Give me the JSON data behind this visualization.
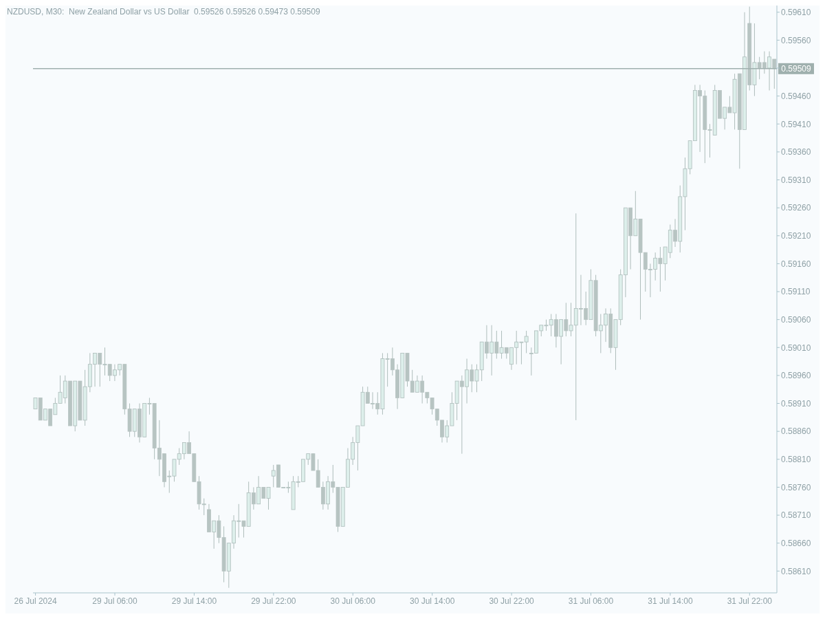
{
  "chart_data": {
    "type": "candlestick",
    "title": "NZDUSD, M30:  New Zealand Dollar vs US Dollar  0.59526 0.59526 0.59473 0.59509",
    "categories": [
      "26 Jul 2024",
      null,
      null,
      null,
      null,
      null,
      null,
      null,
      null,
      null,
      null,
      null,
      null,
      null,
      null,
      null,
      "29 Jul 06:00",
      null,
      null,
      null,
      null,
      null,
      null,
      null,
      null,
      null,
      null,
      null,
      null,
      null,
      null,
      null,
      "29 Jul 14:00",
      null,
      null,
      null,
      null,
      null,
      null,
      null,
      null,
      null,
      null,
      null,
      null,
      null,
      null,
      null,
      "29 Jul 22:00",
      null,
      null,
      null,
      null,
      null,
      null,
      null,
      null,
      null,
      null,
      null,
      null,
      null,
      null,
      null,
      "30 Jul 06:00",
      null,
      null,
      null,
      null,
      null,
      null,
      null,
      null,
      null,
      null,
      null,
      null,
      null,
      null,
      null,
      "30 Jul 14:00",
      null,
      null,
      null,
      null,
      null,
      null,
      null,
      null,
      null,
      null,
      null,
      null,
      null,
      null,
      null,
      "30 Jul 22:00",
      null,
      null,
      null,
      null,
      null,
      null,
      null,
      null,
      null,
      null,
      null,
      null,
      null,
      null,
      null,
      "31 Jul 06:00",
      null,
      null,
      null,
      null,
      null,
      null,
      null,
      null,
      null,
      null,
      null,
      null,
      null,
      null,
      null,
      "31 Jul 14:00",
      null,
      null,
      null,
      null,
      null,
      null,
      null,
      null,
      null,
      null,
      null,
      null,
      null,
      null,
      null,
      "31 Jul 22:00",
      null,
      null,
      null,
      null,
      null
    ],
    "ohlc": [
      [
        0.589,
        0.5892,
        0.589,
        0.5892
      ],
      [
        0.5892,
        0.5892,
        0.5888,
        0.5888
      ],
      [
        0.5888,
        0.589,
        0.5888,
        0.589
      ],
      [
        0.589,
        0.589,
        0.5887,
        0.5887
      ],
      [
        0.5889,
        0.5892,
        0.5889,
        0.5891
      ],
      [
        0.5891,
        0.5896,
        0.5891,
        0.5893
      ],
      [
        0.5892,
        0.5896,
        0.5891,
        0.5895
      ],
      [
        0.5895,
        0.5895,
        0.5887,
        0.5887
      ],
      [
        0.5887,
        0.5895,
        0.5886,
        0.5895
      ],
      [
        0.5895,
        0.5895,
        0.5888,
        0.5888
      ],
      [
        0.5888,
        0.5897,
        0.5887,
        0.5894
      ],
      [
        0.5894,
        0.59,
        0.5893,
        0.5898
      ],
      [
        0.5898,
        0.59,
        0.5894,
        0.59
      ],
      [
        0.59,
        0.59,
        0.5894,
        0.5898
      ],
      [
        0.5898,
        0.5901,
        0.5896,
        0.5898
      ],
      [
        0.5898,
        0.5898,
        0.5895,
        0.5896
      ],
      [
        0.5896,
        0.5898,
        0.5895,
        0.5897
      ],
      [
        0.5897,
        0.5898,
        0.5896,
        0.5898
      ],
      [
        0.5898,
        0.5898,
        0.5889,
        0.589
      ],
      [
        0.589,
        0.5891,
        0.5885,
        0.5886
      ],
      [
        0.5886,
        0.589,
        0.5885,
        0.589
      ],
      [
        0.589,
        0.5891,
        0.5884,
        0.5885
      ],
      [
        0.5885,
        0.5891,
        0.5885,
        0.5891
      ],
      [
        0.5891,
        0.5892,
        0.5889,
        0.5891
      ],
      [
        0.5891,
        0.5891,
        0.5881,
        0.5883
      ],
      [
        0.5883,
        0.5888,
        0.5878,
        0.5881
      ],
      [
        0.5882,
        0.5882,
        0.5876,
        0.5877
      ],
      [
        0.5878,
        0.5879,
        0.5875,
        0.5878
      ],
      [
        0.5878,
        0.5881,
        0.5877,
        0.5881
      ],
      [
        0.5881,
        0.5883,
        0.588,
        0.5882
      ],
      [
        0.5882,
        0.5884,
        0.5881,
        0.5884
      ],
      [
        0.5884,
        0.5886,
        0.5882,
        0.5882
      ],
      [
        0.5882,
        0.5882,
        0.5877,
        0.5877
      ],
      [
        0.5877,
        0.5878,
        0.5872,
        0.5873
      ],
      [
        0.5873,
        0.5874,
        0.5871,
        0.5873
      ],
      [
        0.5872,
        0.5873,
        0.5868,
        0.5868
      ],
      [
        0.5868,
        0.587,
        0.5865,
        0.587
      ],
      [
        0.587,
        0.5871,
        0.5866,
        0.5867
      ],
      [
        0.5867,
        0.5869,
        0.5859,
        0.5861
      ],
      [
        0.5861,
        0.5866,
        0.5858,
        0.5866
      ],
      [
        0.5866,
        0.5871,
        0.5865,
        0.587
      ],
      [
        0.587,
        0.5873,
        0.5867,
        0.587
      ],
      [
        0.587,
        0.587,
        0.5867,
        0.5869
      ],
      [
        0.5869,
        0.5877,
        0.5869,
        0.5875
      ],
      [
        0.5875,
        0.5876,
        0.5872,
        0.5873
      ],
      [
        0.5873,
        0.5878,
        0.5873,
        0.5876
      ],
      [
        0.5876,
        0.5876,
        0.5874,
        0.5874
      ],
      [
        0.5874,
        0.5876,
        0.5872,
        0.5876
      ],
      [
        0.5878,
        0.588,
        0.5876,
        0.5879
      ],
      [
        0.588,
        0.588,
        0.5876,
        0.5876
      ],
      [
        0.5876,
        0.5876,
        0.5876,
        0.5876
      ],
      [
        0.5876,
        0.5877,
        0.5875,
        0.5876
      ],
      [
        0.5872,
        0.5878,
        0.5872,
        0.5877
      ],
      [
        0.5877,
        0.5878,
        0.5876,
        0.5877
      ],
      [
        0.5877,
        0.5881,
        0.5877,
        0.5881
      ],
      [
        0.5881,
        0.5882,
        0.588,
        0.5882
      ],
      [
        0.5882,
        0.5882,
        0.5879,
        0.5879
      ],
      [
        0.5879,
        0.5881,
        0.5876,
        0.5876
      ],
      [
        0.5876,
        0.5877,
        0.5872,
        0.5873
      ],
      [
        0.5873,
        0.5878,
        0.5872,
        0.5877
      ],
      [
        0.5877,
        0.588,
        0.5875,
        0.5876
      ],
      [
        0.5876,
        0.5876,
        0.5868,
        0.5869
      ],
      [
        0.5869,
        0.5876,
        0.5869,
        0.5876
      ],
      [
        0.5876,
        0.5883,
        0.5876,
        0.5881
      ],
      [
        0.5881,
        0.5885,
        0.588,
        0.5884
      ],
      [
        0.5884,
        0.5887,
        0.5879,
        0.5887
      ],
      [
        0.5887,
        0.5894,
        0.5887,
        0.5893
      ],
      [
        0.5893,
        0.5894,
        0.5891,
        0.5891
      ],
      [
        0.5891,
        0.5893,
        0.589,
        0.5891
      ],
      [
        0.5891,
        0.5893,
        0.5889,
        0.589
      ],
      [
        0.589,
        0.59,
        0.5889,
        0.5899
      ],
      [
        0.5899,
        0.59,
        0.5894,
        0.5899
      ],
      [
        0.5899,
        0.5901,
        0.5896,
        0.5897
      ],
      [
        0.5897,
        0.5898,
        0.589,
        0.5892
      ],
      [
        0.5892,
        0.59,
        0.5892,
        0.59
      ],
      [
        0.59,
        0.59,
        0.5894,
        0.5895
      ],
      [
        0.5895,
        0.5897,
        0.5893,
        0.5893
      ],
      [
        0.5893,
        0.5896,
        0.5893,
        0.5895
      ],
      [
        0.5895,
        0.5896,
        0.5891,
        0.5893
      ],
      [
        0.5893,
        0.5893,
        0.5891,
        0.5892
      ],
      [
        0.5892,
        0.5892,
        0.5889,
        0.589
      ],
      [
        0.589,
        0.589,
        0.5887,
        0.5888
      ],
      [
        0.5888,
        0.5888,
        0.5884,
        0.5885
      ],
      [
        0.5885,
        0.5888,
        0.5884,
        0.5887
      ],
      [
        0.5887,
        0.5893,
        0.5887,
        0.5891
      ],
      [
        0.5891,
        0.5895,
        0.5888,
        0.5895
      ],
      [
        0.5895,
        0.5896,
        0.5882,
        0.5894
      ],
      [
        0.5894,
        0.5899,
        0.5891,
        0.5897
      ],
      [
        0.5897,
        0.5898,
        0.5893,
        0.5895
      ],
      [
        0.5895,
        0.5898,
        0.5893,
        0.5897
      ],
      [
        0.5897,
        0.5902,
        0.5895,
        0.5902
      ],
      [
        0.5902,
        0.5905,
        0.5899,
        0.59
      ],
      [
        0.59,
        0.5905,
        0.5896,
        0.5902
      ],
      [
        0.5902,
        0.5904,
        0.5899,
        0.59
      ],
      [
        0.59,
        0.5904,
        0.5899,
        0.5901
      ],
      [
        0.5901,
        0.5901,
        0.5899,
        0.59
      ],
      [
        0.5898,
        0.5901,
        0.5897,
        0.5901
      ],
      [
        0.5901,
        0.5904,
        0.5898,
        0.5902
      ],
      [
        0.5902,
        0.5902,
        0.5898,
        0.5902
      ],
      [
        0.5902,
        0.5904,
        0.59,
        0.5903
      ],
      [
        0.59,
        0.5901,
        0.5896,
        0.59
      ],
      [
        0.59,
        0.5904,
        0.59,
        0.5904
      ],
      [
        0.5904,
        0.5905,
        0.5903,
        0.5905
      ],
      [
        0.5905,
        0.5906,
        0.5904,
        0.5905
      ],
      [
        0.5905,
        0.5907,
        0.5903,
        0.5906
      ],
      [
        0.5906,
        0.5907,
        0.5901,
        0.5903
      ],
      [
        0.5903,
        0.5906,
        0.5898,
        0.5906
      ],
      [
        0.5906,
        0.5909,
        0.5903,
        0.5904
      ],
      [
        0.5904,
        0.5909,
        0.5903,
        0.5905
      ],
      [
        0.5905,
        0.5925,
        0.5888,
        0.5908
      ],
      [
        0.5908,
        0.5914,
        0.5905,
        0.5908
      ],
      [
        0.5908,
        0.5911,
        0.5905,
        0.5906
      ],
      [
        0.5906,
        0.5915,
        0.5906,
        0.5913
      ],
      [
        0.5913,
        0.5914,
        0.5903,
        0.5904
      ],
      [
        0.5904,
        0.5907,
        0.59,
        0.5905
      ],
      [
        0.5905,
        0.5908,
        0.5902,
        0.5907
      ],
      [
        0.5907,
        0.5908,
        0.59,
        0.5901
      ],
      [
        0.5901,
        0.5906,
        0.5897,
        0.5906
      ],
      [
        0.5906,
        0.5915,
        0.5905,
        0.5914
      ],
      [
        0.5914,
        0.5926,
        0.591,
        0.5926
      ],
      [
        0.5926,
        0.5926,
        0.5915,
        0.5921
      ],
      [
        0.5921,
        0.5929,
        0.5921,
        0.5924
      ],
      [
        0.5924,
        0.5924,
        0.5906,
        0.5918
      ],
      [
        0.5918,
        0.5918,
        0.5911,
        0.5915
      ],
      [
        0.5915,
        0.5916,
        0.591,
        0.5915
      ],
      [
        0.5915,
        0.5918,
        0.5913,
        0.5917
      ],
      [
        0.5917,
        0.5919,
        0.5911,
        0.5916
      ],
      [
        0.5916,
        0.5919,
        0.5913,
        0.5919
      ],
      [
        0.5918,
        0.5923,
        0.5917,
        0.5922
      ],
      [
        0.5922,
        0.5924,
        0.5919,
        0.592
      ],
      [
        0.592,
        0.593,
        0.5918,
        0.5928
      ],
      [
        0.5928,
        0.5935,
        0.5922,
        0.5933
      ],
      [
        0.5933,
        0.5938,
        0.5932,
        0.5938
      ],
      [
        0.5938,
        0.5948,
        0.5938,
        0.5947
      ],
      [
        0.5947,
        0.5948,
        0.5936,
        0.5946
      ],
      [
        0.5946,
        0.5947,
        0.5934,
        0.594
      ],
      [
        0.594,
        0.5941,
        0.5935,
        0.594
      ],
      [
        0.5939,
        0.5948,
        0.5939,
        0.5947
      ],
      [
        0.5947,
        0.5947,
        0.5942,
        0.5942
      ],
      [
        0.5942,
        0.5944,
        0.594,
        0.5944
      ],
      [
        0.5944,
        0.5946,
        0.5943,
        0.5943
      ],
      [
        0.5943,
        0.595,
        0.594,
        0.5949
      ],
      [
        0.595,
        0.595,
        0.5933,
        0.594
      ],
      [
        0.594,
        0.5961,
        0.594,
        0.5953
      ],
      [
        0.5959,
        0.5962,
        0.5947,
        0.5948
      ],
      [
        0.5948,
        0.5959,
        0.5946,
        0.5952
      ],
      [
        0.5952,
        0.5953,
        0.5949,
        0.5951
      ],
      [
        0.5952,
        0.5954,
        0.595,
        0.5951
      ],
      [
        0.5951,
        0.5954,
        0.5947,
        0.5953
      ],
      [
        0.59526,
        0.59526,
        0.59473,
        0.59509
      ]
    ],
    "ylim": [
      0.58571,
      0.59622
    ],
    "yticks": [
      {
        "value": 0.5861,
        "label": "0.58610"
      },
      {
        "value": 0.5866,
        "label": "0.58660"
      },
      {
        "value": 0.5871,
        "label": "0.58710"
      },
      {
        "value": 0.5876,
        "label": "0.58760"
      },
      {
        "value": 0.5881,
        "label": "0.58810"
      },
      {
        "value": 0.5886,
        "label": "0.58860"
      },
      {
        "value": 0.5891,
        "label": "0.58910"
      },
      {
        "value": 0.5896,
        "label": "0.58960"
      },
      {
        "value": 0.5901,
        "label": "0.59010"
      },
      {
        "value": 0.5906,
        "label": "0.59060"
      },
      {
        "value": 0.5911,
        "label": "0.59110"
      },
      {
        "value": 0.5916,
        "label": "0.59160"
      },
      {
        "value": 0.5921,
        "label": "0.59210"
      },
      {
        "value": 0.5926,
        "label": "0.59260"
      },
      {
        "value": 0.5931,
        "label": "0.59310"
      },
      {
        "value": 0.5936,
        "label": "0.59360"
      },
      {
        "value": 0.5941,
        "label": "0.59410"
      },
      {
        "value": 0.5946,
        "label": "0.59460"
      },
      {
        "value": 0.5951,
        "label": null
      },
      {
        "value": 0.5956,
        "label": "0.59560"
      },
      {
        "value": 0.5961,
        "label": "0.59610"
      }
    ],
    "ref_lines": [
      {
        "axis": "y",
        "value": 0.59509,
        "label": "0.59509",
        "color": "#9fb0ae"
      }
    ]
  }
}
